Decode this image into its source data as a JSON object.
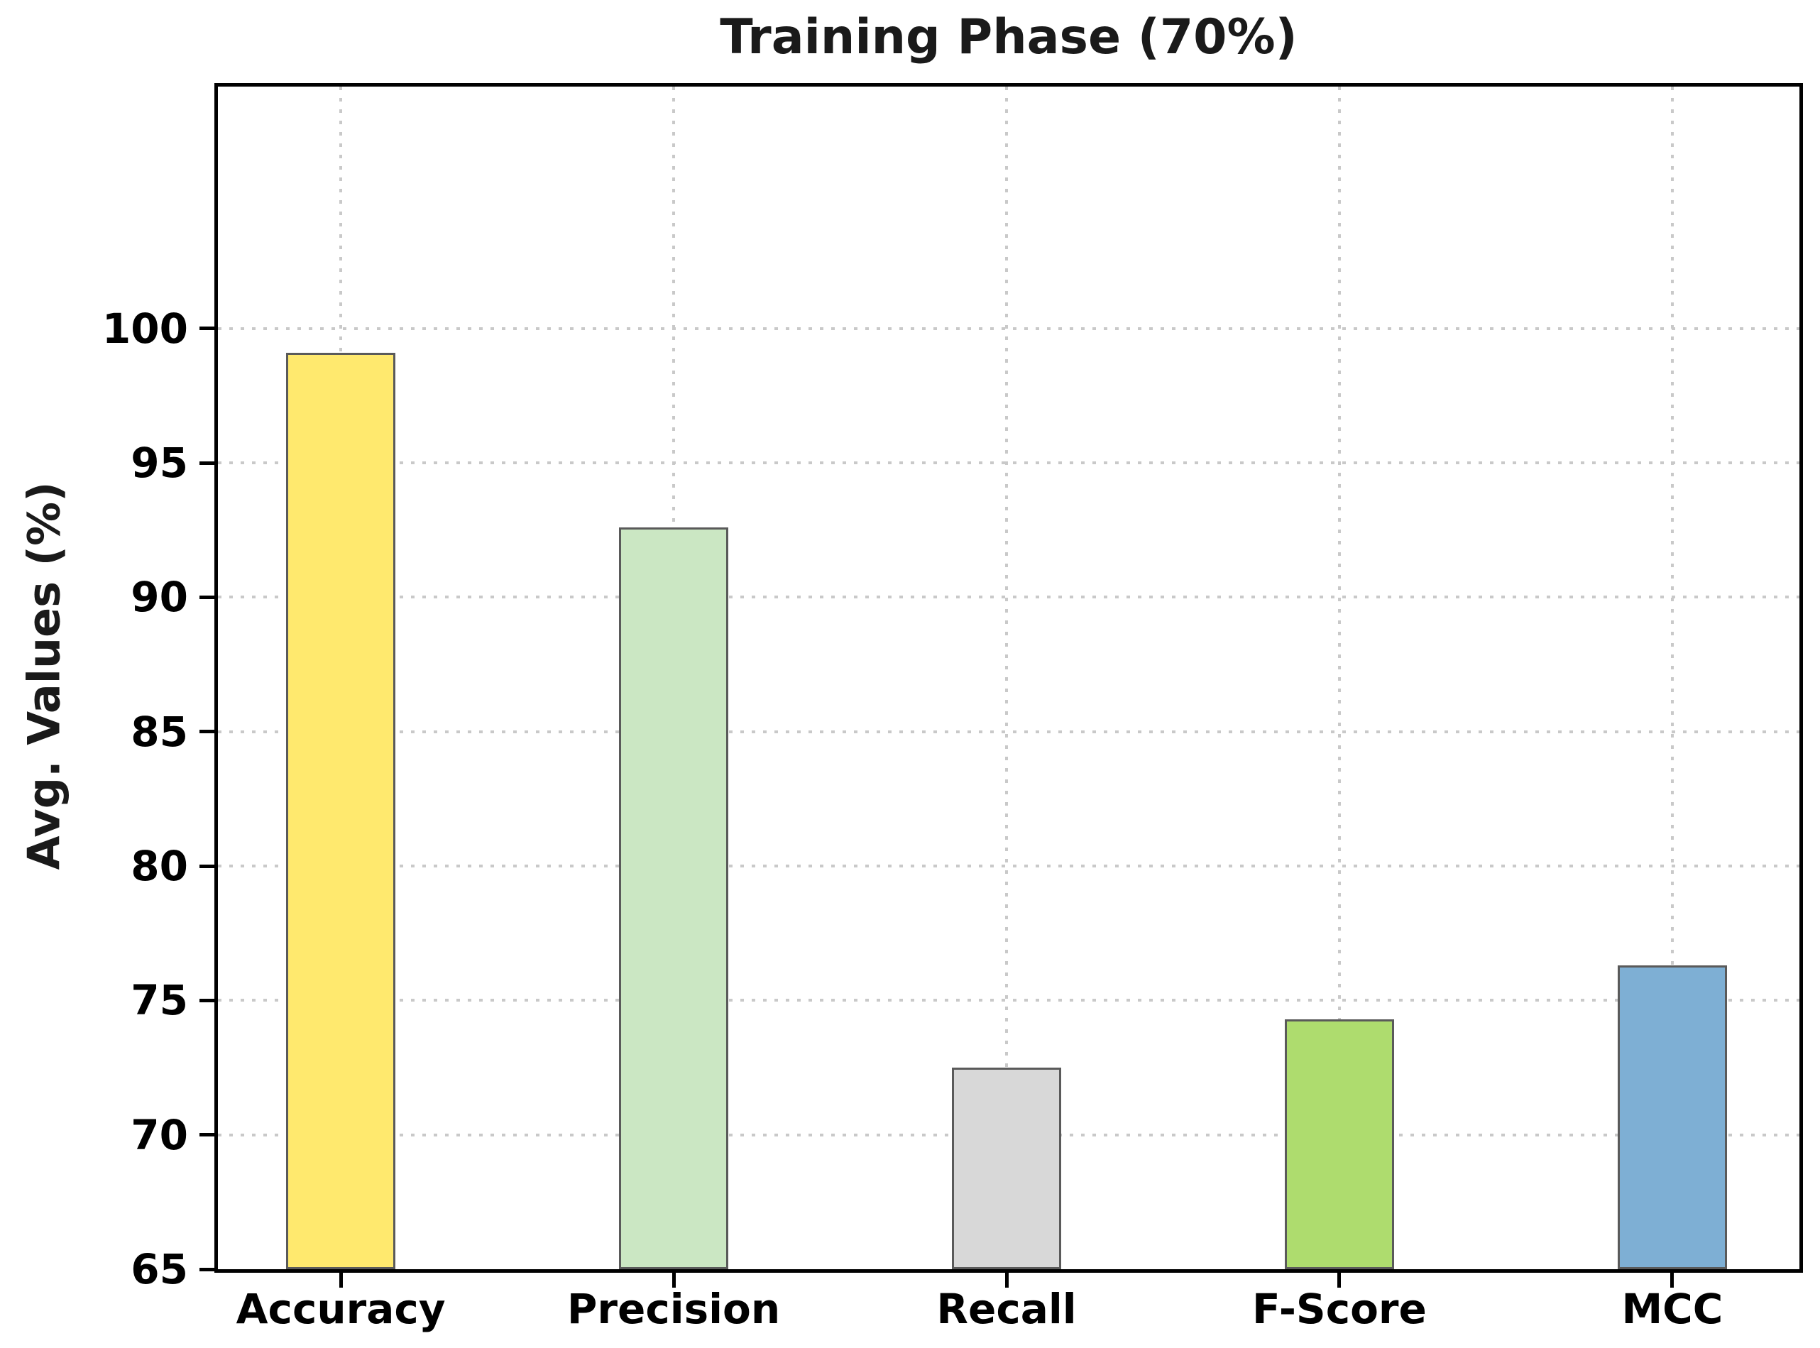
{
  "chart_data": {
    "type": "bar",
    "title": "Training Phase (70%)",
    "ylabel": "Avg. Values (%)",
    "xlabel": "",
    "categories": [
      "Accuracy",
      "Precision",
      "Recall",
      "F-Score",
      "MCC"
    ],
    "values": [
      99.1,
      92.6,
      72.5,
      74.3,
      76.3
    ],
    "bar_colors": [
      "#ffe96e",
      "#cbe7c3",
      "#d8d8d8",
      "#aedc6e",
      "#7eafd4"
    ],
    "bar_edge_color": "#5a5a5a",
    "ylim": [
      65,
      109
    ],
    "yticks": [
      65,
      70,
      75,
      80,
      85,
      90,
      95,
      100
    ],
    "grid": {
      "style": "dotted",
      "color": "#c9c9c9",
      "horizontal": true,
      "vertical": true,
      "axisbelow": true
    },
    "legend_position": "none"
  }
}
